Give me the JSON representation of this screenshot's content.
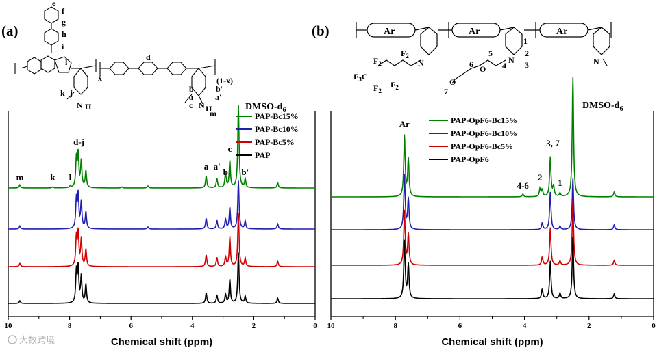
{
  "panels": [
    {
      "id": "a",
      "label": "(a)",
      "structure_labels": {
        "e": "e",
        "f": "f",
        "g": "g",
        "h": "h",
        "i": "i",
        "k": "k",
        "l": "l",
        "j": "j",
        "d": "d",
        "b": "b",
        "b_prime": "b'",
        "a": "a",
        "a_prime": "a'",
        "c": "c",
        "m": "m",
        "N": "N",
        "H1": "H",
        "H2": "H",
        "sub_x": "x",
        "sub_1mx": "(1-x)"
      },
      "solvent": "DMSO-d",
      "solvent_sub": "6",
      "peak_labels": [
        {
          "text": "m",
          "ppm": 9.62
        },
        {
          "text": "k",
          "ppm": 8.55
        },
        {
          "text": "l",
          "ppm": 7.98
        },
        {
          "text": "d-j",
          "ppm": 7.7
        },
        {
          "text": "a",
          "ppm": 3.55
        },
        {
          "text": "a'",
          "ppm": 3.2
        },
        {
          "text": "b",
          "ppm": 2.92
        },
        {
          "text": "c",
          "ppm": 2.78
        },
        {
          "text": "b'",
          "ppm": 2.28
        }
      ]
    },
    {
      "id": "b",
      "label": "(b)",
      "structure_labels": {
        "ar1": "Ar",
        "ar2": "Ar",
        "ar3": "Ar",
        "n1": "1",
        "n2": "2",
        "n3": "3",
        "n4": "4",
        "n5": "5",
        "n6": "6",
        "n7": "7",
        "F3C": "F",
        "F3C_sub": "3",
        "F3C_c": "C",
        "F2": "F",
        "F2_sub": "2",
        "C": "C",
        "O": "O",
        "N": "N"
      },
      "solvent": "DMSO-d",
      "solvent_sub": "6",
      "peak_labels": [
        {
          "text": "Ar",
          "ppm": 7.72
        },
        {
          "text": "4-6",
          "ppm": 4.05
        },
        {
          "text": "2",
          "ppm": 3.52
        },
        {
          "text": "3, 7",
          "ppm": 3.12
        },
        {
          "text": "1",
          "ppm": 2.9
        }
      ]
    }
  ],
  "chart_data": [
    {
      "type": "line",
      "title": "",
      "xlabel": "Chemical shift (ppm)",
      "ylabel": "",
      "xlim": [
        10,
        0
      ],
      "xticks": [
        "10",
        "8",
        "6",
        "4",
        "2",
        "0"
      ],
      "x_reversed": true,
      "legend_placement": "right",
      "grid": false,
      "series": [
        {
          "name": "PAP-Bc15%",
          "color": "#008000",
          "peaks": [
            {
              "ppm": 9.62,
              "h": 0.06
            },
            {
              "ppm": 8.55,
              "h": 0.02
            },
            {
              "ppm": 7.98,
              "h": 0.03
            },
            {
              "ppm": 7.78,
              "h": 0.55
            },
            {
              "ppm": 7.72,
              "h": 0.62
            },
            {
              "ppm": 7.62,
              "h": 0.5
            },
            {
              "ppm": 7.47,
              "h": 0.32
            },
            {
              "ppm": 6.3,
              "h": 0.02
            },
            {
              "ppm": 5.45,
              "h": 0.04
            },
            {
              "ppm": 3.55,
              "h": 0.22
            },
            {
              "ppm": 3.2,
              "h": 0.18
            },
            {
              "ppm": 2.92,
              "h": 0.28
            },
            {
              "ppm": 2.78,
              "h": 0.5
            },
            {
              "ppm": 2.5,
              "h": 1.55
            },
            {
              "ppm": 2.28,
              "h": 0.16
            },
            {
              "ppm": 1.22,
              "h": 0.1
            }
          ]
        },
        {
          "name": "PAP-Bc10%",
          "color": "#1f1fb4",
          "peaks": [
            {
              "ppm": 9.62,
              "h": 0.06
            },
            {
              "ppm": 7.78,
              "h": 0.55
            },
            {
              "ppm": 7.72,
              "h": 0.62
            },
            {
              "ppm": 7.62,
              "h": 0.5
            },
            {
              "ppm": 7.47,
              "h": 0.32
            },
            {
              "ppm": 5.45,
              "h": 0.04
            },
            {
              "ppm": 3.55,
              "h": 0.2
            },
            {
              "ppm": 3.2,
              "h": 0.16
            },
            {
              "ppm": 2.92,
              "h": 0.18
            },
            {
              "ppm": 2.78,
              "h": 0.4
            },
            {
              "ppm": 2.5,
              "h": 0.9
            },
            {
              "ppm": 2.28,
              "h": 0.14
            },
            {
              "ppm": 1.22,
              "h": 0.1
            }
          ]
        },
        {
          "name": "PAP-Bc5%",
          "color": "#d00000",
          "peaks": [
            {
              "ppm": 9.62,
              "h": 0.06
            },
            {
              "ppm": 7.78,
              "h": 0.55
            },
            {
              "ppm": 7.72,
              "h": 0.62
            },
            {
              "ppm": 7.62,
              "h": 0.5
            },
            {
              "ppm": 7.47,
              "h": 0.32
            },
            {
              "ppm": 3.55,
              "h": 0.22
            },
            {
              "ppm": 3.2,
              "h": 0.17
            },
            {
              "ppm": 2.92,
              "h": 0.18
            },
            {
              "ppm": 2.78,
              "h": 0.55
            },
            {
              "ppm": 2.5,
              "h": 1.0
            },
            {
              "ppm": 2.28,
              "h": 0.15
            },
            {
              "ppm": 1.22,
              "h": 0.1
            }
          ]
        },
        {
          "name": "PAP",
          "color": "#000000",
          "peaks": [
            {
              "ppm": 9.62,
              "h": 0.05
            },
            {
              "ppm": 7.78,
              "h": 0.6
            },
            {
              "ppm": 7.72,
              "h": 0.66
            },
            {
              "ppm": 7.62,
              "h": 0.5
            },
            {
              "ppm": 7.47,
              "h": 0.36
            },
            {
              "ppm": 3.55,
              "h": 0.2
            },
            {
              "ppm": 3.2,
              "h": 0.16
            },
            {
              "ppm": 2.92,
              "h": 0.17
            },
            {
              "ppm": 2.78,
              "h": 0.45
            },
            {
              "ppm": 2.5,
              "h": 0.95
            },
            {
              "ppm": 2.28,
              "h": 0.13
            },
            {
              "ppm": 1.22,
              "h": 0.1
            }
          ]
        }
      ]
    },
    {
      "type": "line",
      "title": "",
      "xlabel": "Chemical shift (ppm)",
      "ylabel": "",
      "xlim": [
        10,
        0
      ],
      "xticks": [
        "10",
        "8",
        "6",
        "4",
        "2",
        "0"
      ],
      "x_reversed": true,
      "legend_placement": "right",
      "grid": false,
      "series": [
        {
          "name": "PAP-OpF6-Bc15%",
          "color": "#008000",
          "peaks": [
            {
              "ppm": 7.72,
              "h": 0.9
            },
            {
              "ppm": 7.6,
              "h": 0.55
            },
            {
              "ppm": 4.05,
              "h": 0.04
            },
            {
              "ppm": 3.52,
              "h": 0.12
            },
            {
              "ppm": 3.45,
              "h": 0.1
            },
            {
              "ppm": 3.2,
              "h": 0.58
            },
            {
              "ppm": 3.1,
              "h": 0.15
            },
            {
              "ppm": 2.9,
              "h": 0.05
            },
            {
              "ppm": 2.5,
              "h": 1.75
            },
            {
              "ppm": 1.22,
              "h": 0.07
            }
          ]
        },
        {
          "name": "PAP-OpF6-Bc10%",
          "color": "#1f1fb4",
          "peaks": [
            {
              "ppm": 7.72,
              "h": 0.8
            },
            {
              "ppm": 7.6,
              "h": 0.45
            },
            {
              "ppm": 3.45,
              "h": 0.1
            },
            {
              "ppm": 3.2,
              "h": 0.55
            },
            {
              "ppm": 2.9,
              "h": 0.05
            },
            {
              "ppm": 2.5,
              "h": 0.75
            },
            {
              "ppm": 1.22,
              "h": 0.07
            }
          ]
        },
        {
          "name": "PAP-OpF6-Bc5%",
          "color": "#d00000",
          "peaks": [
            {
              "ppm": 7.72,
              "h": 0.8
            },
            {
              "ppm": 7.6,
              "h": 0.45
            },
            {
              "ppm": 3.45,
              "h": 0.12
            },
            {
              "ppm": 3.2,
              "h": 0.55
            },
            {
              "ppm": 2.9,
              "h": 0.06
            },
            {
              "ppm": 2.5,
              "h": 0.95
            },
            {
              "ppm": 1.22,
              "h": 0.07
            }
          ]
        },
        {
          "name": "PAP-OpF6",
          "color": "#000000",
          "peaks": [
            {
              "ppm": 7.72,
              "h": 0.85
            },
            {
              "ppm": 7.6,
              "h": 0.5
            },
            {
              "ppm": 3.45,
              "h": 0.14
            },
            {
              "ppm": 3.2,
              "h": 0.55
            },
            {
              "ppm": 2.9,
              "h": 0.08
            },
            {
              "ppm": 2.5,
              "h": 0.9
            },
            {
              "ppm": 1.22,
              "h": 0.07
            }
          ]
        }
      ]
    }
  ],
  "watermark": "大数跨境"
}
